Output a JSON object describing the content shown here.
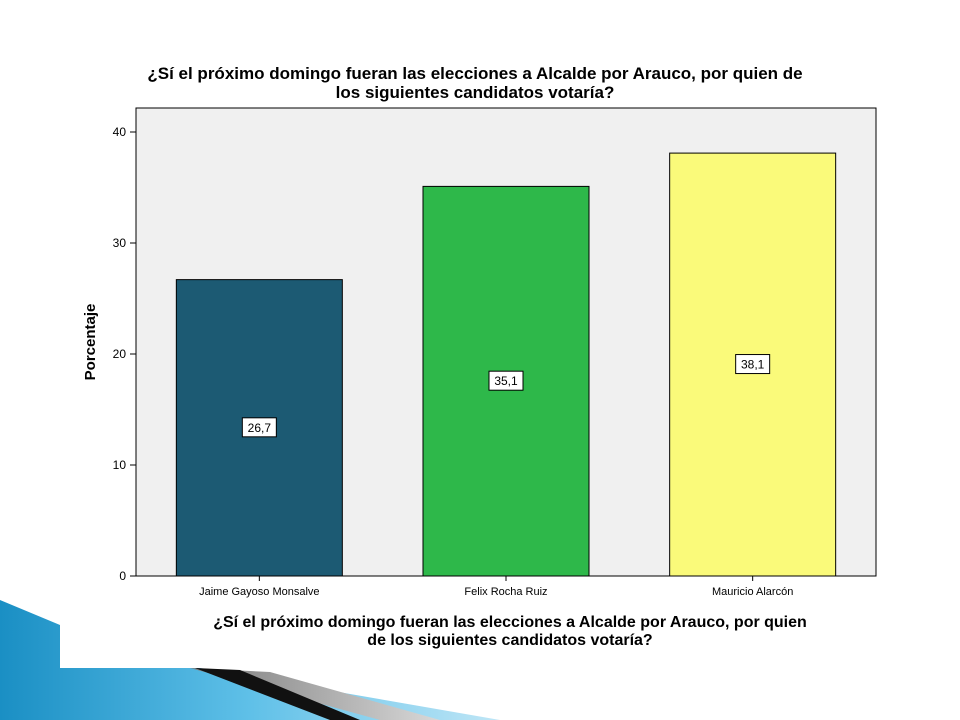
{
  "chart_data": {
    "type": "bar",
    "title": [
      "¿Sí el próximo domingo fueran las elecciones a Alcalde por Arauco, por quien de",
      "los siguientes candidatos votaría?"
    ],
    "xlabel": [
      "¿Sí el próximo domingo fueran las elecciones a Alcalde por Arauco, por quien",
      "de los siguientes candidatos votaría?"
    ],
    "ylabel": "Porcentaje",
    "categories": [
      "Jaime Gayoso Monsalve",
      "Felix Rocha Ruiz",
      "Mauricio Alarcón"
    ],
    "values": [
      26.7,
      35.1,
      38.1
    ],
    "data_labels": [
      "26,7",
      "35,1",
      "38,1"
    ],
    "bar_colors": [
      "#1c5a73",
      "#2eb84a",
      "#fafa7a"
    ],
    "ylim": [
      0,
      40
    ],
    "yticks": [
      0,
      10,
      20,
      30,
      40
    ],
    "plot_background": "#f0f0f0",
    "grid": false,
    "legend": false
  }
}
